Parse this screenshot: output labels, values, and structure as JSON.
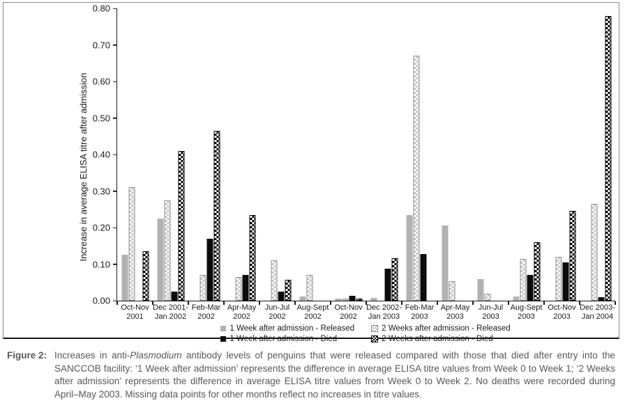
{
  "figure": {
    "caption": {
      "label": "Figure 2:",
      "text_pre_italic": "Increases in anti-",
      "text_italic": "Plasmodium",
      "text_post_italic": " antibody levels of penguins that were released compared with those that died after entry into the SANCCOB facility: ‘1 Week after admission’ represents the difference in average ELISA titre values from Week 0 to Week 1; ‘2 Weeks after admission’ represents the difference in average ELISA titre values from Week 0 to Week 2. No deaths were recorded during April–May 2003. Missing data points for other months reflect no increases in titre values."
    }
  },
  "chart_data": {
    "type": "bar",
    "title": "",
    "xlabel": "",
    "ylabel": "Increase in average ELISA titre after admission",
    "ylim": [
      0,
      0.8
    ],
    "ytick_step": 0.1,
    "ytick_labels": [
      "0.00",
      "0.10",
      "0.20",
      "0.30",
      "0.40",
      "0.50",
      "0.60",
      "0.70",
      "0.80"
    ],
    "grid": false,
    "legend_position": "bottom",
    "colors": {
      "solid_gray": "#b2b2b2",
      "checkered_gray": "#c6c6c6",
      "solid_black": "#0c0c0c",
      "checkered_black": "#000000"
    },
    "categories": [
      {
        "line1": "Oct-Nov",
        "line2": "2001"
      },
      {
        "line1": "Dec 2001-",
        "line2": "Jan 2002"
      },
      {
        "line1": "Feb-Mar",
        "line2": "2002"
      },
      {
        "line1": "Apr-May",
        "line2": "2002"
      },
      {
        "line1": "Jun-Jul",
        "line2": "2002"
      },
      {
        "line1": "Aug-Sept",
        "line2": "2002"
      },
      {
        "line1": "Oct-Nov",
        "line2": "2002"
      },
      {
        "line1": "Dec 2002-",
        "line2": "Jan 2003"
      },
      {
        "line1": "Feb-Mar",
        "line2": "2003"
      },
      {
        "line1": "Apr-May",
        "line2": "2003"
      },
      {
        "line1": "Jun-Jul",
        "line2": "2003"
      },
      {
        "line1": "Aug-Sept",
        "line2": "2003"
      },
      {
        "line1": "Oct-Nov",
        "line2": "2003"
      },
      {
        "line1": "Dec 2003-",
        "line2": "Jan 2004"
      }
    ],
    "series": [
      {
        "name": "1 Week after admission - Released",
        "style": "solid-gray",
        "values": [
          0.125,
          0.225,
          0,
          0,
          0,
          0.012,
          0.005,
          0.008,
          0.235,
          0.205,
          0.06,
          0.012,
          0,
          0
        ]
      },
      {
        "name": "2 Weeks after admission - Released",
        "style": "checkered-gray",
        "values": [
          0.31,
          0.275,
          0.07,
          0.065,
          0.11,
          0.07,
          0.005,
          0,
          0.67,
          0.053,
          0.02,
          0.115,
          0.12,
          0.265
        ]
      },
      {
        "name": "1 Week after admission - Died",
        "style": "solid-black",
        "values": [
          0,
          0.025,
          0.17,
          0.07,
          0.025,
          0,
          0.013,
          0.088,
          0.127,
          0,
          0,
          0.07,
          0.105,
          0.01
        ]
      },
      {
        "name": "2 Weeks after admission - Died",
        "style": "checkered-black",
        "values": [
          0.135,
          0.41,
          0.465,
          0.235,
          0.057,
          0,
          0.006,
          0.117,
          0,
          0,
          0,
          0.16,
          0.245,
          0.78
        ]
      }
    ]
  }
}
